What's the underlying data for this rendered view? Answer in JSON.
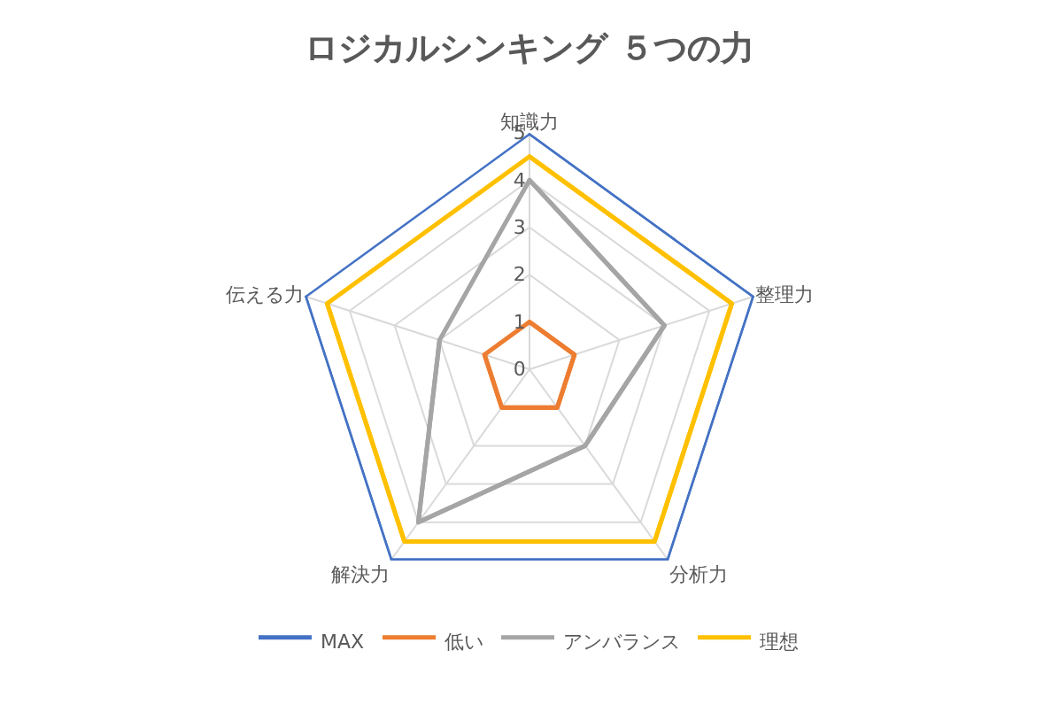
{
  "chart_data": {
    "type": "radar",
    "title": "ロジカルシンキング ５つの力",
    "categories": [
      "知識力",
      "整理力",
      "分析力",
      "解決力",
      "伝える力"
    ],
    "series": [
      {
        "name": "MAX",
        "color": "#4472c4",
        "values": [
          5,
          5,
          5,
          5,
          5
        ]
      },
      {
        "name": "低い",
        "color": "#ed7d31",
        "values": [
          1,
          1,
          1,
          1,
          1
        ]
      },
      {
        "name": "アンバランス",
        "color": "#a5a5a5",
        "values": [
          4,
          3,
          2,
          4,
          2
        ]
      },
      {
        "name": "理想",
        "color": "#ffc000",
        "values": [
          4.5,
          4.5,
          4.5,
          4.5,
          4.5
        ]
      }
    ],
    "ylim": [
      0,
      5
    ],
    "yticks": [
      0,
      1,
      2,
      3,
      4,
      5
    ],
    "grid": true,
    "legend": "bottom",
    "marker": "none",
    "line_style": "solid"
  }
}
